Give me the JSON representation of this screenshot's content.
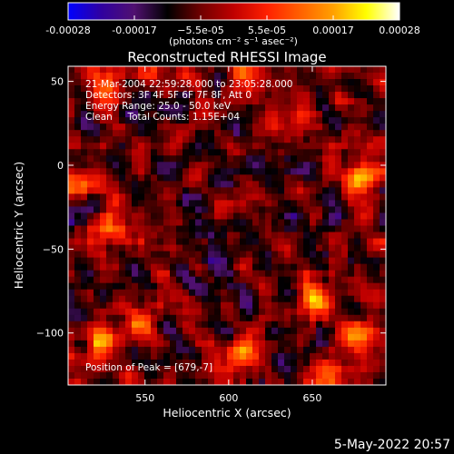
{
  "colorbar": {
    "ticks": [
      "-0.00028",
      "-0.00017",
      "−5.5e-05",
      "5.5e-05",
      "0.00017",
      "0.00028"
    ],
    "units": "(photons cm⁻² s⁻¹ asec⁻²)",
    "range": [
      -0.00028,
      0.00028
    ],
    "colors": [
      "#0000ff",
      "#3000a0",
      "#501070",
      "#000000",
      "#700000",
      "#c00000",
      "#ff2000",
      "#ff6000",
      "#ffa000",
      "#ffff00",
      "#ffffff"
    ]
  },
  "annotations": {
    "line1": "21-Mar-2004 22:59:28.000 to 23:05:28.000",
    "line2": "Detectors: 3F 4F 5F 6F 7F 8F, Att 0",
    "line3": "Energy Range: 25.0 - 50.0 keV",
    "line4": "Clean     Total Counts: 1.15E+04",
    "peak": "Position of Peak = [679,-7]"
  },
  "footer": {
    "date": "5-May-2022 20:57"
  },
  "chart_data": {
    "type": "heatmap",
    "title": "Reconstructed RHESSI Image",
    "xlabel": "Heliocentric X (arcsec)",
    "ylabel": "Heliocentric Y (arcsec)",
    "xlim": [
      504,
      694
    ],
    "ylim": [
      -131,
      59
    ],
    "xticks": [
      550,
      600,
      650
    ],
    "xtick_labels": [
      "550",
      "600",
      "650"
    ],
    "yticks": [
      50,
      0,
      -50,
      -100
    ],
    "ytick_labels": [
      "50",
      "0",
      "−50",
      "−100"
    ],
    "peak_position": [
      679,
      -7
    ],
    "bright_sources": [
      {
        "x": 679,
        "y": -7,
        "intensity": 1.0
      },
      {
        "x": 650,
        "y": -82,
        "intensity": 0.85
      },
      {
        "x": 678,
        "y": -102,
        "intensity": 0.8
      },
      {
        "x": 528,
        "y": -38,
        "intensity": 0.7
      },
      {
        "x": 526,
        "y": 49,
        "intensity": 0.65
      },
      {
        "x": 556,
        "y": 56,
        "intensity": 0.7
      },
      {
        "x": 612,
        "y": 57,
        "intensity": 0.55
      },
      {
        "x": 522,
        "y": -105,
        "intensity": 0.6
      },
      {
        "x": 548,
        "y": -95,
        "intensity": 0.55
      },
      {
        "x": 608,
        "y": -112,
        "intensity": 0.65
      },
      {
        "x": 660,
        "y": -127,
        "intensity": 0.6
      },
      {
        "x": 512,
        "y": -10,
        "intensity": 0.55
      },
      {
        "x": 640,
        "y": 30,
        "intensity": 0.45
      }
    ]
  }
}
